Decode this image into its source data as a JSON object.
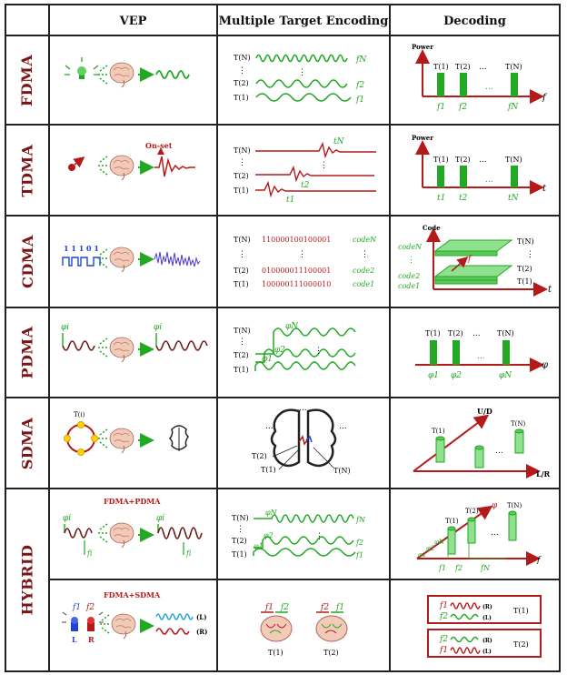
{
  "headers": {
    "vep": "VEP",
    "encoding": "Multiple Target Encoding",
    "decoding": "Decoding"
  },
  "rows": {
    "fdma": {
      "label": "FDMA"
    },
    "tdma": {
      "label": "TDMA"
    },
    "cdma": {
      "label": "CDMA"
    },
    "pdma": {
      "label": "PDMA"
    },
    "sdma": {
      "label": "SDMA"
    },
    "hybrid": {
      "label": "HYBRID"
    }
  },
  "targets": {
    "t1": "T(1)",
    "t2": "T(2)",
    "tn": "T(N)",
    "ti": "T(i)",
    "dots": "...",
    "vdots": "⋮"
  },
  "fdma": {
    "enc": {
      "fn": "fN",
      "f2": "f2",
      "f1": "f1"
    },
    "dec": {
      "power": "Power",
      "axis": "f",
      "ticks": [
        "f1",
        "f2",
        "fN"
      ]
    }
  },
  "tdma": {
    "vep": {
      "onset": "On-set"
    },
    "enc": {
      "tn": "tN",
      "t2": "t2",
      "t1": "t1"
    },
    "dec": {
      "power": "Power",
      "axis": "t",
      "ticks": [
        "t1",
        "t2",
        "tN"
      ]
    }
  },
  "cdma": {
    "vep": {
      "bits": "1 1 1 0 1"
    },
    "enc": {
      "rows": [
        {
          "label": "T(N)",
          "code": "110000100100001",
          "name": "codeN"
        },
        {
          "label": "T(2)",
          "code": "010000011100001",
          "name": "code2"
        },
        {
          "label": "T(1)",
          "code": "100000111000010",
          "name": "code1"
        }
      ]
    },
    "dec": {
      "code": "Code",
      "axis_f": "f",
      "axis_t": "t",
      "codes": [
        "codeN",
        "code2",
        "code1"
      ]
    }
  },
  "pdma": {
    "vep": {
      "phi": "φi"
    },
    "enc": {
      "phiN": "φN",
      "phi2": "φ2",
      "phi1": "φ1"
    },
    "dec": {
      "axis": "φ",
      "ticks": [
        "φ1",
        "φ2",
        "φN"
      ]
    }
  },
  "sdma": {
    "dec": {
      "ud": "U/D",
      "lr": "L/R"
    }
  },
  "hybrid": {
    "fp": {
      "title": "FDMA+PDMA",
      "phi": "φi",
      "f": "fi"
    },
    "fp_enc": {
      "phiN": "φN",
      "phi2": "φ2",
      "phi1": "φ1",
      "fN": "fN",
      "f2": "f2",
      "f1": "f1"
    },
    "fp_dec": {
      "phi": "φ",
      "f": "f",
      "phiN": "φN",
      "phi2": "φ2",
      "phi1": "φ1",
      "ticks": [
        "f1",
        "f2",
        "fN"
      ]
    },
    "fs": {
      "title": "FDMA+SDMA",
      "f1": "f1",
      "f2": "f2",
      "l": "L",
      "r": "R",
      "lo": "(L)",
      "ro": "(R)"
    },
    "fs_dec": {
      "box1": {
        "t": "T(1)",
        "rows": [
          [
            "f1",
            "(R)"
          ],
          [
            "f2",
            "(L)"
          ]
        ]
      },
      "box2": {
        "t": "T(2)",
        "rows": [
          [
            "f2",
            "(R)"
          ],
          [
            "f1",
            "(L)"
          ]
        ]
      }
    }
  },
  "colors": {
    "green": "#22a822",
    "red": "#b51a1a",
    "dark": "#222222",
    "blue": "#2244cc"
  }
}
